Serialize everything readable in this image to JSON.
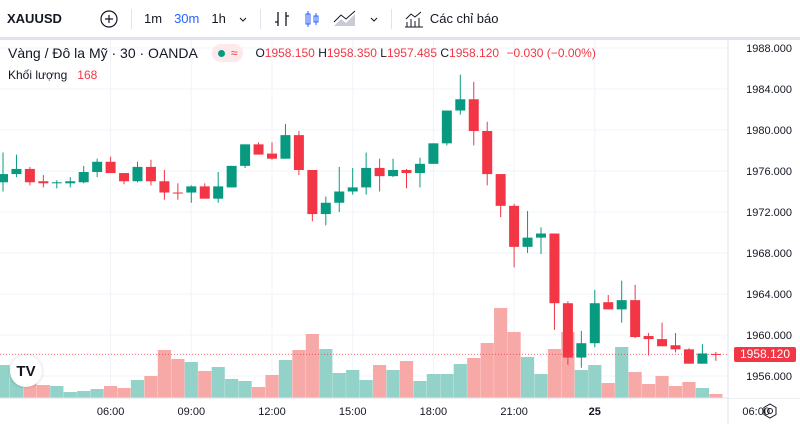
{
  "toolbar": {
    "symbol": "XAUUSD",
    "add_icon": "plus-circle-icon",
    "intervals": [
      "1m",
      "30m",
      "1h"
    ],
    "active_interval": "30m",
    "indicators_label": "Các chỉ báo"
  },
  "legend": {
    "title": "Vàng / Đô la Mỹ · 30 · OANDA",
    "o_label": "O",
    "o": "1958.150",
    "h_label": "H",
    "h": "1958.350",
    "l_label": "L",
    "l": "1957.485",
    "c_label": "C",
    "c": "1958.120",
    "change": "−0.030 (−0.00%)",
    "volume_label": "Khối lượng",
    "volume_value": "168"
  },
  "colors": {
    "up": "#089981",
    "down": "#f23645",
    "vol_up": "#92d2c8",
    "vol_down": "#f7a9a7",
    "accent": "#2962ff"
  },
  "current_price": "1958.120",
  "logo_text": "TV",
  "chart_data": {
    "type": "candlestick",
    "ylim": [
      1954,
      1990
    ],
    "y_ticks": [
      "1988.000",
      "1984.000",
      "1980.000",
      "1976.000",
      "1972.000",
      "1968.000",
      "1964.000",
      "1960.000",
      "1956.000"
    ],
    "x_ticks": [
      "06:00",
      "09:00",
      "12:00",
      "15:00",
      "18:00",
      "21:00",
      "25",
      "06:00"
    ],
    "candles": [
      [
        1974.9,
        1977.8,
        1974.0,
        1975.7
      ],
      [
        1975.7,
        1977.6,
        1975.4,
        1976.2
      ],
      [
        1976.2,
        1976.4,
        1974.6,
        1974.9
      ],
      [
        1975.0,
        1975.6,
        1974.4,
        1974.8
      ],
      [
        1974.8,
        1975.1,
        1974.3,
        1974.9
      ],
      [
        1974.8,
        1975.4,
        1974.4,
        1975.0
      ],
      [
        1974.9,
        1976.5,
        1974.8,
        1975.9
      ],
      [
        1975.9,
        1977.2,
        1975.4,
        1976.9
      ],
      [
        1976.9,
        1977.4,
        1975.8,
        1975.8
      ],
      [
        1975.8,
        1975.8,
        1974.7,
        1975.0
      ],
      [
        1975.0,
        1976.9,
        1974.9,
        1976.4
      ],
      [
        1976.4,
        1977.1,
        1974.6,
        1975.0
      ],
      [
        1975.0,
        1976.1,
        1973.2,
        1973.9
      ],
      [
        1973.9,
        1974.8,
        1973.2,
        1973.8
      ],
      [
        1973.9,
        1974.6,
        1972.9,
        1974.5
      ],
      [
        1974.5,
        1974.8,
        1973.3,
        1973.3
      ],
      [
        1973.3,
        1975.9,
        1972.9,
        1974.5
      ],
      [
        1974.4,
        1976.5,
        1974.4,
        1976.5
      ],
      [
        1976.5,
        1978.6,
        1976.3,
        1978.6
      ],
      [
        1978.6,
        1978.8,
        1977.6,
        1977.6
      ],
      [
        1977.7,
        1978.8,
        1977.1,
        1977.2
      ],
      [
        1977.2,
        1980.6,
        1977.2,
        1979.5
      ],
      [
        1979.5,
        1979.9,
        1975.6,
        1976.1
      ],
      [
        1976.1,
        1976.1,
        1971.1,
        1971.8
      ],
      [
        1971.8,
        1973.5,
        1970.7,
        1972.9
      ],
      [
        1972.9,
        1976.4,
        1972.0,
        1974.0
      ],
      [
        1974.0,
        1976.3,
        1973.7,
        1974.4
      ],
      [
        1974.4,
        1977.8,
        1973.7,
        1976.3
      ],
      [
        1976.3,
        1977.2,
        1974.0,
        1975.5
      ],
      [
        1975.5,
        1977.2,
        1975.4,
        1976.1
      ],
      [
        1976.1,
        1976.2,
        1974.3,
        1975.8
      ],
      [
        1975.8,
        1977.3,
        1974.4,
        1976.7
      ],
      [
        1976.7,
        1978.7,
        1976.7,
        1978.7
      ],
      [
        1978.7,
        1981.9,
        1978.5,
        1981.9
      ],
      [
        1981.9,
        1985.4,
        1981.5,
        1983.0
      ],
      [
        1983.0,
        1984.7,
        1978.5,
        1979.9
      ],
      [
        1979.9,
        1980.8,
        1974.6,
        1975.7
      ],
      [
        1975.7,
        1975.7,
        1971.5,
        1972.6
      ],
      [
        1972.6,
        1972.8,
        1966.6,
        1968.6
      ],
      [
        1968.6,
        1972.1,
        1968.0,
        1969.5
      ],
      [
        1969.5,
        1970.5,
        1967.9,
        1969.9
      ],
      [
        1969.9,
        1969.9,
        1960.5,
        1963.1
      ],
      [
        1963.1,
        1963.3,
        1957.1,
        1957.8
      ],
      [
        1957.8,
        1960.4,
        1956.8,
        1959.2
      ],
      [
        1959.2,
        1964.4,
        1958.8,
        1963.1
      ],
      [
        1963.2,
        1963.9,
        1962.5,
        1962.5
      ],
      [
        1962.5,
        1965.3,
        1961.2,
        1963.4
      ],
      [
        1963.4,
        1964.9,
        1959.7,
        1959.8
      ],
      [
        1959.9,
        1960.2,
        1958.0,
        1959.6
      ],
      [
        1959.6,
        1961.2,
        1958.9,
        1958.9
      ],
      [
        1959.0,
        1960.2,
        1958.3,
        1958.6
      ],
      [
        1958.6,
        1958.7,
        1957.2,
        1957.2
      ],
      [
        1957.2,
        1959.1,
        1957.2,
        1958.2
      ],
      [
        1958.15,
        1958.35,
        1957.485,
        1958.12
      ]
    ],
    "volumes": [
      1386,
      1260,
      714,
      546,
      504,
      252,
      294,
      378,
      504,
      420,
      756,
      924,
      2016,
      1638,
      1512,
      1134,
      1302,
      798,
      714,
      462,
      966,
      1596,
      2016,
      2688,
      2058,
      1050,
      1176,
      756,
      1386,
      1176,
      1554,
      714,
      1008,
      1008,
      1428,
      1680,
      2310,
      3780,
      2772,
      1722,
      1008,
      2058,
      2772,
      1176,
      1386,
      630,
      2142,
      1092,
      588,
      924,
      504,
      672,
      420,
      168
    ]
  }
}
